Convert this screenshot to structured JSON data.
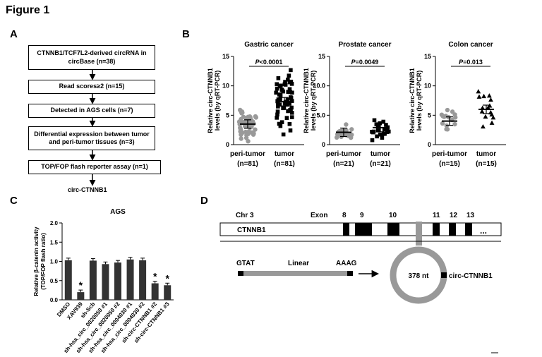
{
  "figure": {
    "title": "Figure 1",
    "panels": {
      "a": "A",
      "b": "B",
      "c": "C",
      "d": "D"
    }
  },
  "panel_a": {
    "steps": [
      "CTNNB1/TCF7L2-derived circRNA in circBase (n=38)",
      "Read scores≥2 (n=15)",
      "Detected in AGS cells (n=7)",
      "Differential expression between tumor and peri-tumor tissues (n=3)",
      "TOP/FOP flash reporter assay (n=1)"
    ],
    "result": "circ-CTNNB1"
  },
  "panel_b": {
    "ylabel": "Relative circ-CTNNB1 levels (by qRT-PCR)",
    "xlabel_a": "peri-tumor",
    "xlabel_b": "tumor"
  },
  "panel_c": {
    "title": "AGS",
    "ylabel": "Relative β-catenin activity (TOP/FOP flash ratio)",
    "star": "*"
  },
  "panel_d": {
    "chr": "Chr 3",
    "exon_label": "Exon",
    "exons": [
      "8",
      "9",
      "10",
      "11",
      "12",
      "13"
    ],
    "gene": "CTNNB1",
    "ellipsis": "...",
    "linear_left": "GTAT",
    "linear_mid": "Linear",
    "linear_right": "AAAG",
    "circle_size": "378 nt",
    "circ_label": "circ-CTNNB1"
  },
  "chart_data": [
    {
      "type": "scatter",
      "title": "Gastric cancer",
      "annotation": "P<0.0001",
      "categories": [
        "(n=81)",
        "(n=81)"
      ],
      "series": [
        {
          "values": [
            3.5,
            7.3
          ]
        }
      ],
      "ylim": [
        0,
        15
      ],
      "yticks": [
        0,
        5,
        10,
        15
      ],
      "point_count": [
        81,
        81
      ]
    },
    {
      "type": "scatter",
      "title": "Prostate cancer",
      "annotation": "P=0.0049",
      "categories": [
        "(n=21)",
        "(n=21)"
      ],
      "series": [
        {
          "values": [
            2.1,
            2.9
          ]
        }
      ],
      "ylim": [
        0,
        15
      ],
      "yticks": [
        0,
        5.0,
        10.0,
        15
      ],
      "ytick_labels": [
        "0",
        "5.0",
        "10.0",
        "15"
      ],
      "point_count": [
        21,
        21
      ]
    },
    {
      "type": "scatter",
      "title": "Colon cancer",
      "annotation": "P=0.013",
      "categories": [
        "(n=15)",
        "(n=15)"
      ],
      "series": [
        {
          "values": [
            4.0,
            6.0
          ]
        }
      ],
      "ylim": [
        0,
        15
      ],
      "yticks": [
        0,
        5,
        10,
        15
      ],
      "point_count": [
        15,
        15
      ]
    },
    {
      "type": "bar",
      "title": "AGS",
      "categories": [
        "DMSO",
        "XAV939",
        "sh-Scb",
        "sh-hsa_circ_0020050 #1",
        "sh-hsa_circ_0020050 #2",
        "sh-hsa_circ_0004030 #1",
        "sh-hsa_circ_0004030 #2",
        "sh-circ-CTNNB1 #2",
        "sh-circ-CTNNB1 #3"
      ],
      "values": [
        1.03,
        0.2,
        1.02,
        0.93,
        0.97,
        1.05,
        1.03,
        0.43,
        0.38
      ],
      "significant": [
        false,
        true,
        false,
        false,
        false,
        false,
        false,
        true,
        true
      ],
      "ylim": [
        0,
        2.0
      ],
      "yticks": [
        "0.0",
        "0.5",
        "1.0",
        "1.5",
        "2.0"
      ]
    }
  ]
}
